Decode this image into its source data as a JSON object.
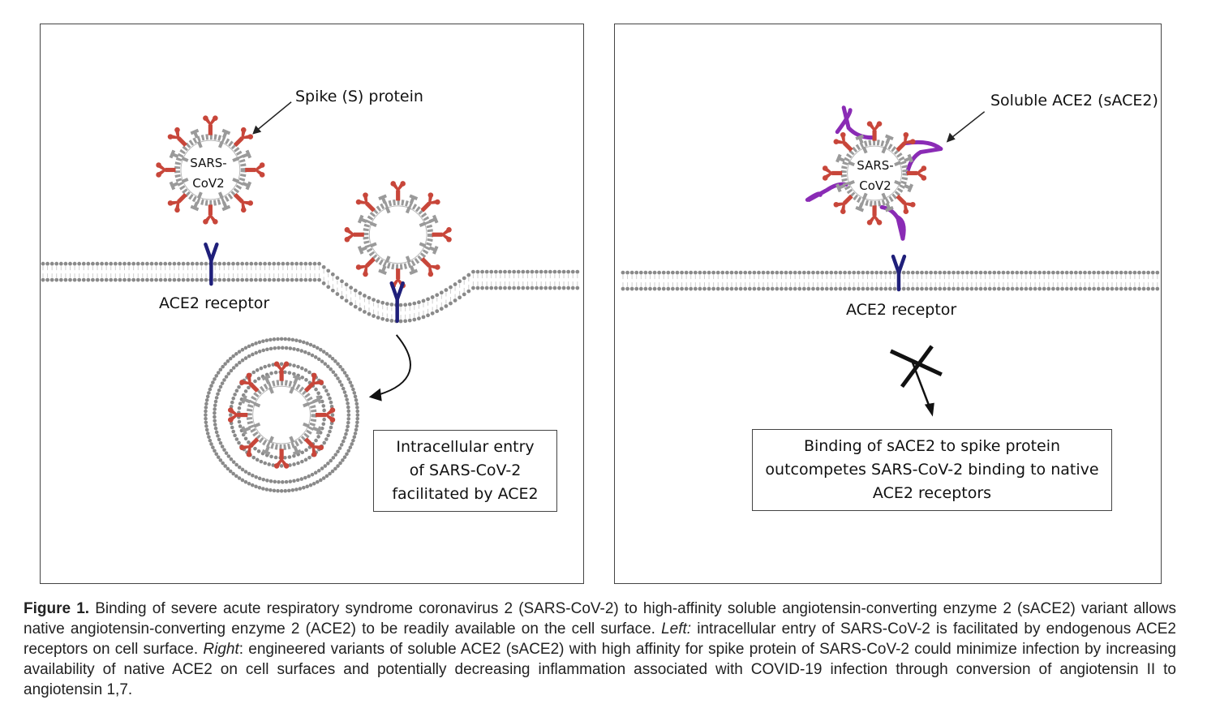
{
  "left_panel": {
    "spike_label": "Spike (S) protein",
    "virus_label_line1": "SARS-",
    "virus_label_line2": "CoV2",
    "receptor_label": "ACE2 receptor",
    "box_lines": [
      "Intracellular entry",
      "of SARS-CoV-2",
      "facilitated by ACE2"
    ]
  },
  "right_panel": {
    "sace2_label": "Soluble ACE2 (sACE2)",
    "virus_label_line1": "SARS-",
    "virus_label_line2": "CoV2",
    "receptor_label": "ACE2 receptor",
    "box_lines": [
      "Binding of sACE2 to spike protein",
      "outcompetes SARS-CoV-2 binding to native",
      "ACE2 receptors"
    ]
  },
  "caption": {
    "figure_label": "Figure 1.",
    "part1": " Binding of severe acute respiratory syndrome coronavirus 2 (SARS-CoV-2) to high-affinity soluble angiotensin-converting enzyme 2 (sACE2) variant allows native angiotensin-converting enzyme 2 (ACE2) to be readily available on the cell surface. ",
    "left_label": "Left:",
    "part2": " intracellular entry of SARS-CoV-2 is facilitated by endogenous ACE2 receptors on cell surface. ",
    "right_label": "Right",
    "part3": ": engineered variants of soluble ACE2 (sACE2) with high affinity for spike protein of SARS-CoV-2 could minimize infection by increasing availability of native ACE2 on cell surfaces and potentially decreasing inflammation associated with COVID-19 infection through conversion of angiotensin II to angiotensin 1,7."
  },
  "colors": {
    "spike": "#c8463a",
    "envelope": "#9a9a9a",
    "receptor": "#1f1f7a",
    "sace2": "#8a2bb5",
    "membrane_bead": "#8a8a8a"
  }
}
